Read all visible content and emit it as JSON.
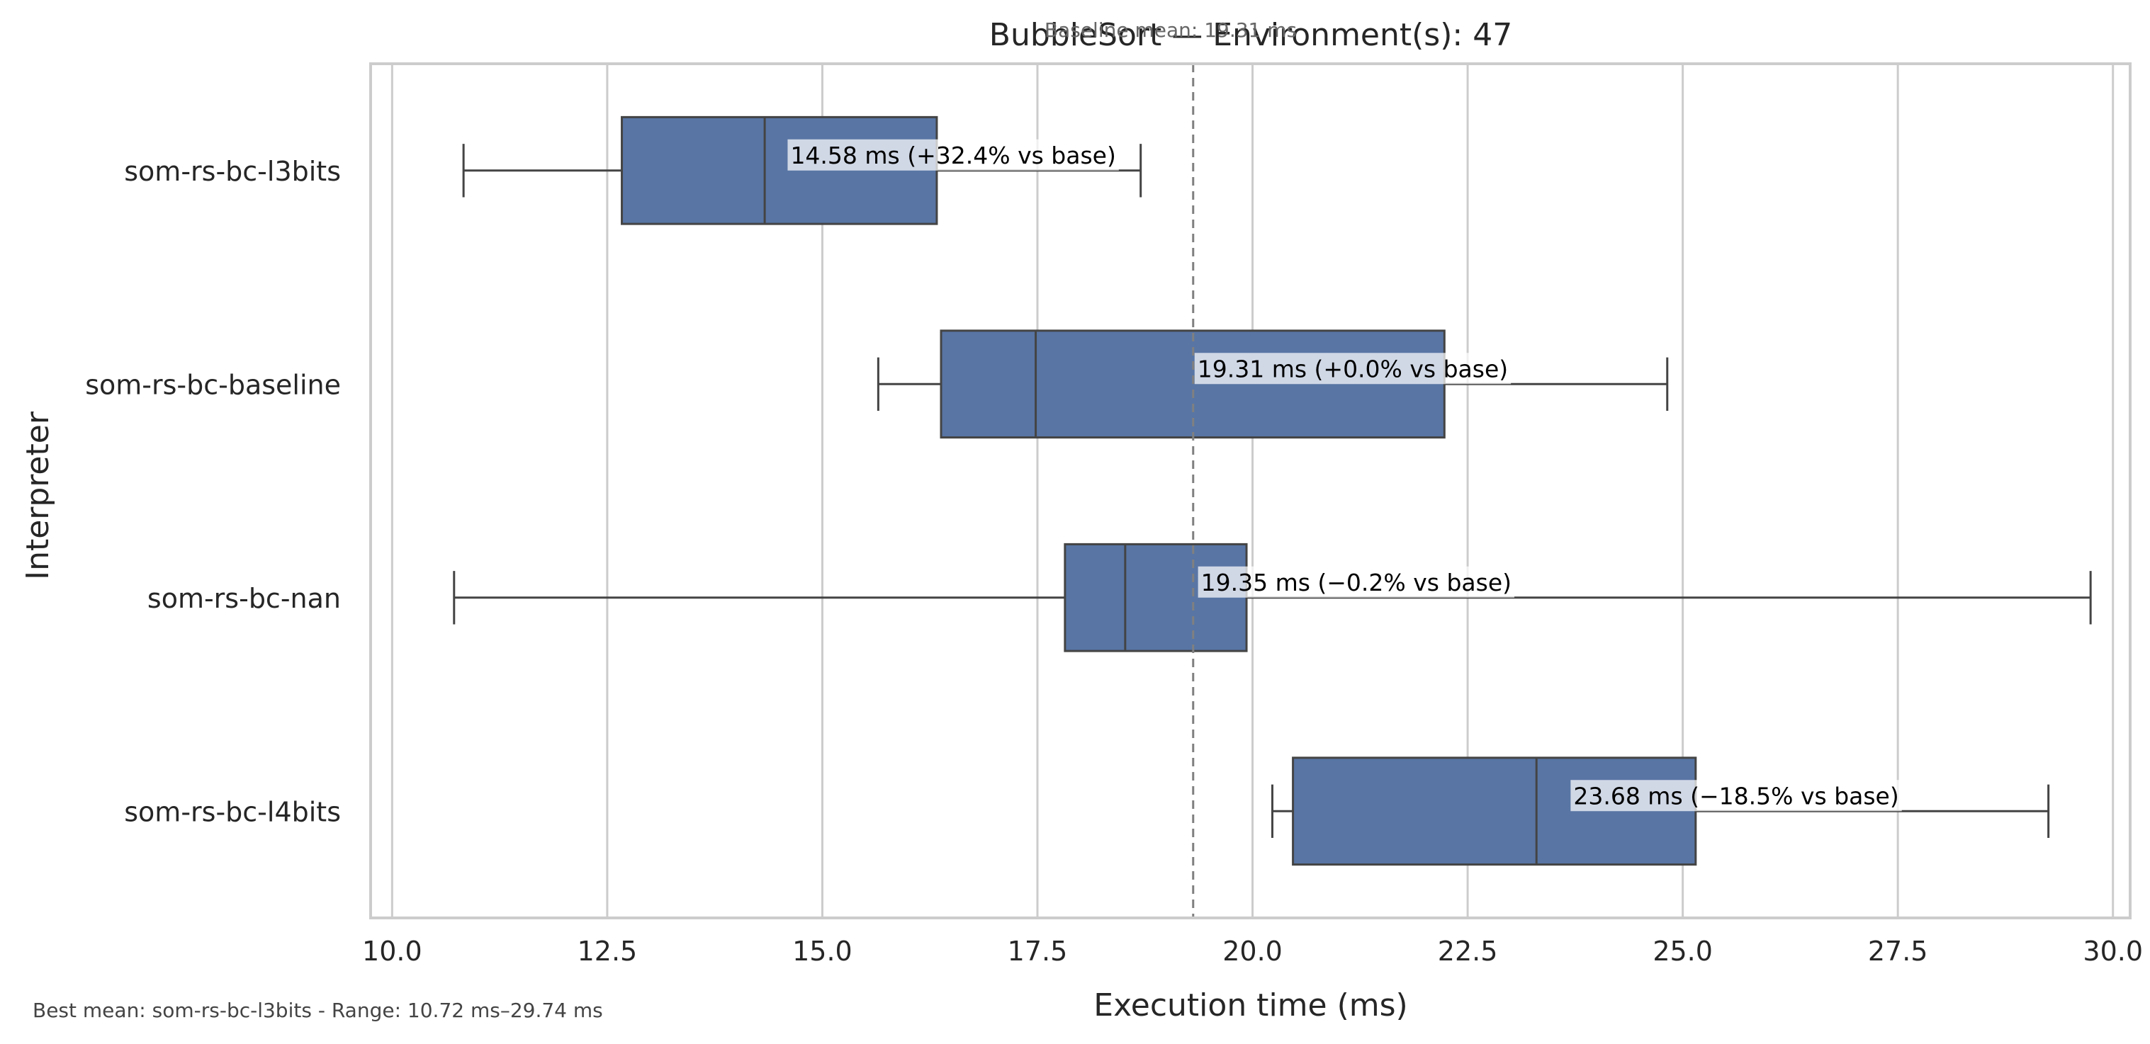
{
  "chart_data": {
    "type": "box",
    "orientation": "horizontal",
    "title": "BubbleSort — Environment(s): 47",
    "xlabel": "Execution time (ms)",
    "ylabel": "Interpreter",
    "xlim": [
      9.75,
      30.2
    ],
    "xticks": [
      10.0,
      12.5,
      15.0,
      17.5,
      20.0,
      22.5,
      25.0,
      27.5,
      30.0
    ],
    "xtick_labels": [
      "10.0",
      "12.5",
      "15.0",
      "17.5",
      "20.0",
      "22.5",
      "25.0",
      "27.5",
      "30.0"
    ],
    "grid": "vertical",
    "box_color": "#5875a4",
    "line_color": "#444444",
    "baseline": {
      "value": 19.31,
      "label": "Baseline mean: 19.31 ms"
    },
    "series": [
      {
        "name": "som-rs-bc-l3bits",
        "whisker_low": 10.83,
        "q1": 12.67,
        "median": 14.33,
        "q3": 16.33,
        "whisker_high": 18.7,
        "mean_label": "14.58 ms  (+32.4% vs base)"
      },
      {
        "name": "som-rs-bc-baseline",
        "whisker_low": 15.65,
        "q1": 16.38,
        "median": 17.48,
        "q3": 22.23,
        "whisker_high": 24.82,
        "mean_label": "19.31 ms  (+0.0% vs base)"
      },
      {
        "name": "som-rs-bc-nan",
        "whisker_low": 10.72,
        "q1": 17.82,
        "median": 18.52,
        "q3": 19.93,
        "whisker_high": 29.74,
        "mean_label": "19.35 ms  (−0.2% vs base)"
      },
      {
        "name": "som-rs-bc-l4bits",
        "whisker_low": 20.23,
        "q1": 20.47,
        "median": 23.3,
        "q3": 25.15,
        "whisker_high": 29.25,
        "mean_label": "23.68 ms  (−18.5% vs base)"
      }
    ],
    "footnote": "Best mean: som-rs-bc-l3bits - Range: 10.72 ms–29.74 ms"
  }
}
